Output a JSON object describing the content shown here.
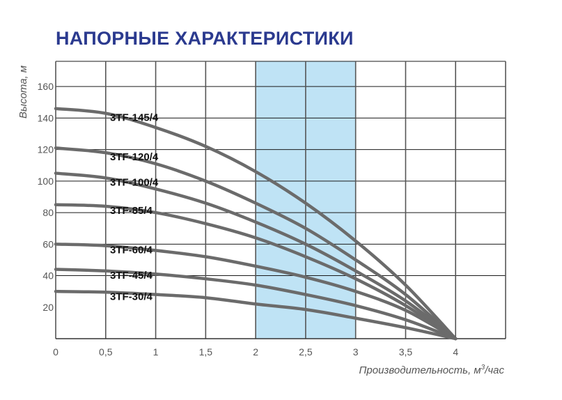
{
  "title": "НАПОРНЫЕ ХАРАКТЕРИСТИКИ",
  "chart_data": {
    "type": "line",
    "ylabel": "Высота, м",
    "xlabel_main": "Производительность, м",
    "xlabel_sup": "3",
    "xlabel_tail": "/час",
    "xlim": [
      0,
      4.5
    ],
    "ylim": [
      0,
      176
    ],
    "xticks": [
      0,
      0.5,
      1,
      1.5,
      2,
      2.5,
      3,
      3.5,
      4
    ],
    "xtick_labels": [
      "0",
      "0,5",
      "1",
      "1,5",
      "2",
      "2,5",
      "3",
      "3,5",
      "4"
    ],
    "yticks": [
      20,
      40,
      60,
      80,
      100,
      120,
      140,
      160
    ],
    "ytick_labels": [
      "20",
      "40",
      "60",
      "80",
      "100",
      "120",
      "140",
      "160"
    ],
    "vgrid": [
      0,
      0.5,
      1,
      1.5,
      2,
      2.5,
      3,
      3.5,
      4,
      4.5
    ],
    "hgrid": [
      40,
      60,
      80,
      100,
      120,
      140,
      160,
      176
    ],
    "highlight_range": [
      2,
      3
    ],
    "highlight_color": "#bfe3f5",
    "line_color": "#6b6b6b",
    "series": [
      {
        "name": "3TF-145/4",
        "x": [
          0,
          0.5,
          1,
          1.5,
          2,
          2.5,
          3,
          3.5,
          4
        ],
        "y": [
          146,
          143,
          134,
          122,
          106,
          86,
          62,
          34,
          0
        ]
      },
      {
        "name": "3TF-120/4",
        "x": [
          0,
          0.5,
          1,
          1.5,
          2,
          2.5,
          3,
          3.5,
          4
        ],
        "y": [
          121,
          118,
          111,
          100,
          86,
          70,
          50,
          28,
          0
        ]
      },
      {
        "name": "3TF-100/4",
        "x": [
          0,
          0.5,
          1,
          1.5,
          2,
          2.5,
          3,
          3.5,
          4
        ],
        "y": [
          105,
          102,
          95,
          86,
          74,
          60,
          43,
          24,
          0
        ]
      },
      {
        "name": "3TF-85/4",
        "x": [
          0,
          0.5,
          1,
          1.5,
          2,
          2.5,
          3,
          3.5,
          4
        ],
        "y": [
          85,
          84,
          80,
          73,
          64,
          52,
          38,
          21,
          0
        ]
      },
      {
        "name": "3TF-60/4",
        "x": [
          0,
          0.5,
          1,
          1.5,
          2,
          2.5,
          3,
          3.5,
          4
        ],
        "y": [
          60,
          59,
          56,
          52,
          46,
          39,
          30,
          18,
          0
        ]
      },
      {
        "name": "3TF-45/4",
        "x": [
          0,
          0.5,
          1,
          1.5,
          2,
          2.5,
          3,
          3.5,
          4
        ],
        "y": [
          44,
          43,
          41,
          38,
          34,
          28,
          21,
          12,
          0
        ]
      },
      {
        "name": "3TF-30/4",
        "x": [
          0,
          0.5,
          1,
          1.5,
          2,
          2.5,
          3,
          3.5,
          4
        ],
        "y": [
          30,
          29.5,
          28,
          26,
          22,
          18.5,
          13,
          7,
          0
        ]
      }
    ]
  }
}
